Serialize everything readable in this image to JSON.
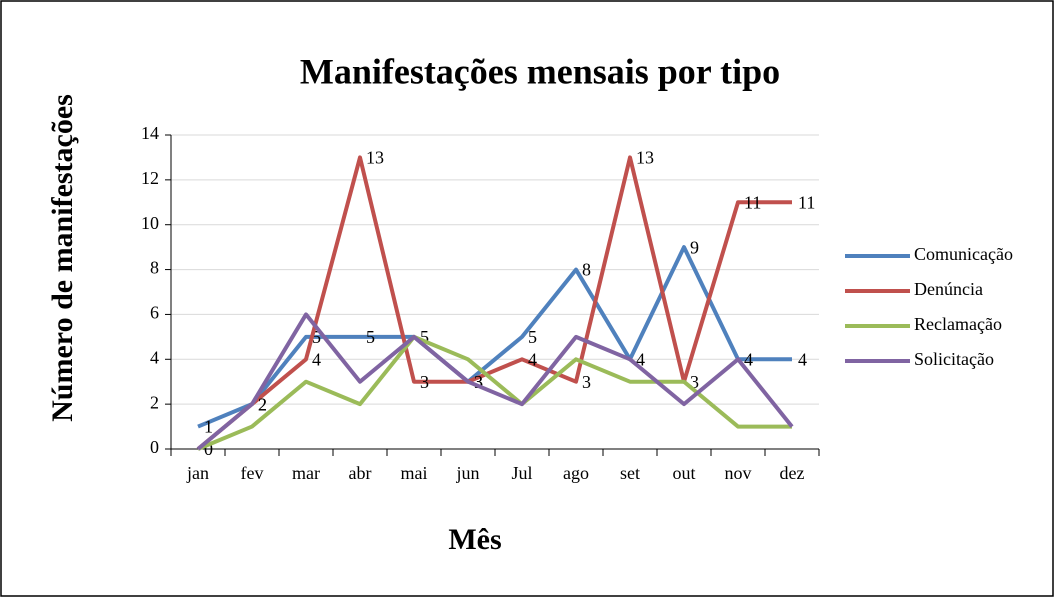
{
  "chart_data": {
    "type": "line",
    "title": "Manifestações mensais por tipo",
    "x_label": "Mês",
    "y_label": "Número de manifestações",
    "categories": [
      "jan",
      "fev",
      "mar",
      "abr",
      "mai",
      "jun",
      "Jul",
      "ago",
      "set",
      "out",
      "nov",
      "dez"
    ],
    "series": [
      {
        "name": "Comunicação",
        "color": "#4f81bd",
        "data_labels": true,
        "values": [
          1,
          2,
          5,
          5,
          5,
          3,
          5,
          8,
          4,
          9,
          4,
          4
        ]
      },
      {
        "name": "Denúncia",
        "color": "#c0504d",
        "data_labels": true,
        "values": [
          0,
          2,
          4,
          13,
          3,
          3,
          4,
          3,
          13,
          3,
          11,
          11
        ]
      },
      {
        "name": "Reclamação",
        "color": "#9bbb59",
        "data_labels": false,
        "values": [
          0,
          1,
          3,
          2,
          5,
          4,
          2,
          4,
          3,
          3,
          1,
          1
        ]
      },
      {
        "name": "Solicitação",
        "color": "#8064a2",
        "data_labels": false,
        "values": [
          0,
          2,
          6,
          3,
          5,
          3,
          2,
          5,
          4,
          2,
          4,
          1
        ]
      }
    ],
    "ylim": [
      0,
      14
    ],
    "yticks": [
      0,
      2,
      4,
      6,
      8,
      10,
      12,
      14
    ],
    "grid": true,
    "legend": "right"
  }
}
